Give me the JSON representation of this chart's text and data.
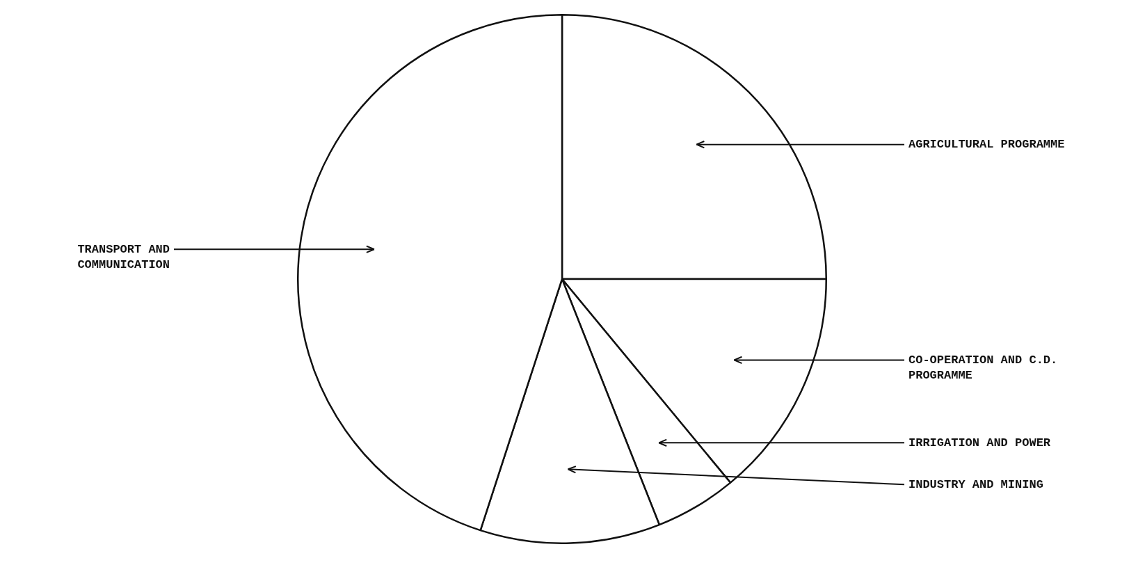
{
  "chart_data": {
    "type": "pie",
    "categories": [
      "AGRICULTURAL PROGRAMME",
      "CO-OPERATION AND C.D. PROGRAMME",
      "IRRIGATION AND POWER",
      "INDUSTRY AND MINING",
      "TRANSPORT AND COMMUNICATION"
    ],
    "values": [
      25,
      14,
      5,
      11,
      45
    ],
    "colors": [
      "#ffffff",
      "#ffffff",
      "#ffffff",
      "#ffffff",
      "#ffffff"
    ],
    "legend": false
  }
}
